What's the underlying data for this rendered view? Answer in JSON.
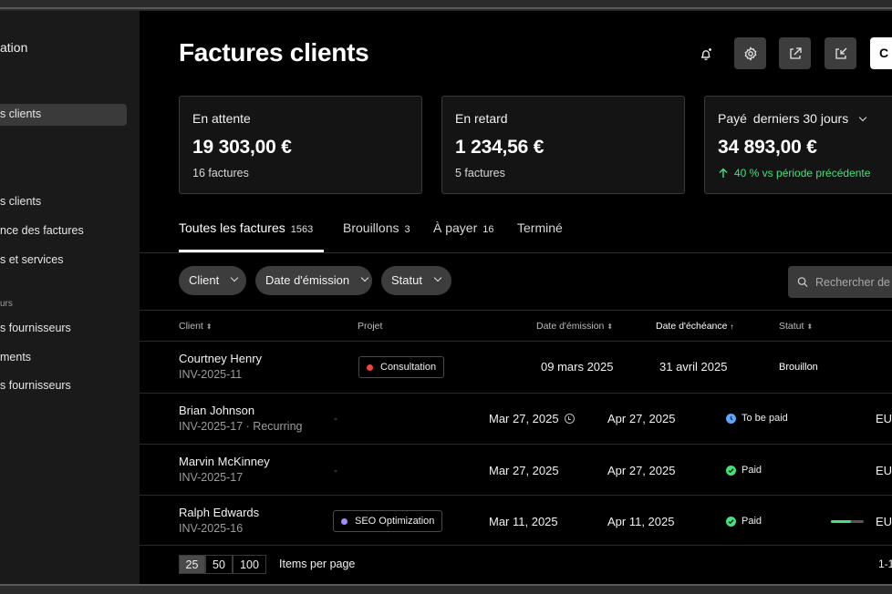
{
  "sidebar": {
    "title": "ation",
    "items": [
      {
        "label": "s clients",
        "active": true
      },
      {
        "label": "s clients"
      },
      {
        "label": "nce des factures"
      },
      {
        "label": "s et services"
      },
      {
        "section": "urs"
      },
      {
        "label": "s fournisseurs"
      },
      {
        "label": "ments"
      },
      {
        "label": "s fournisseurs"
      }
    ]
  },
  "header": {
    "title": "Factures clients",
    "action_button_label": "C"
  },
  "cards": [
    {
      "label": "En attente",
      "amount": "19 303,00 €",
      "sub": "16 factures"
    },
    {
      "label": "En retard",
      "amount": "1 234,56 €",
      "sub": "5 factures"
    },
    {
      "label": "Payé",
      "period": "derniers 30 jours",
      "amount": "34 893,00 €",
      "trend": "40 % vs période précédente",
      "trend_color": "#4ade80"
    }
  ],
  "tabs": [
    {
      "label": "Toutes les factures",
      "count": "1563"
    },
    {
      "label": "Brouillons",
      "count": "3"
    },
    {
      "label": "À payer",
      "count": "16"
    },
    {
      "label": "Terminé",
      "count": ""
    }
  ],
  "filters": [
    {
      "label": "Client"
    },
    {
      "label": "Date d'émission"
    },
    {
      "label": "Statut"
    }
  ],
  "search": {
    "placeholder": "Rechercher de"
  },
  "table": {
    "columns": [
      "Client",
      "Projet",
      "Date d'émission",
      "Date d'échéance",
      "Statut"
    ],
    "rows": [
      {
        "client": "Courtney Henry",
        "invoice": "INV-2025-11",
        "project": "Consultation",
        "project_color": "#ef4444",
        "issued": "09 mars 2025",
        "due": "31 avril 2025",
        "status": "Brouillon",
        "currency": ""
      },
      {
        "client": "Brian Johnson",
        "invoice": "INV-2025-17",
        "recurring": "Recurring",
        "project": "-",
        "issued": "Mar 27, 2025",
        "due": "Apr 27, 2025",
        "status": "To be paid",
        "status_color": "#60a5fa",
        "currency": "EU"
      },
      {
        "client": "Marvin McKinney",
        "invoice": "INV-2025-17",
        "project": "-",
        "issued": "Mar 27, 2025",
        "due": "Apr 27, 2025",
        "status": "Paid",
        "status_color": "#4ade80",
        "currency": "EU"
      },
      {
        "client": "Ralph Edwards",
        "invoice": "INV-2025-16",
        "project": "SEO Optimization",
        "project_color": "#a78bfa",
        "issued": "Mar 11, 2025",
        "due": "Apr 11, 2025",
        "status": "Paid",
        "status_color": "#4ade80",
        "progress": 0.6,
        "currency": "EU"
      }
    ]
  },
  "pagination": {
    "sizes": [
      "25",
      "50",
      "100"
    ],
    "selected": "25",
    "label": "Items per page",
    "range": "1-1"
  }
}
